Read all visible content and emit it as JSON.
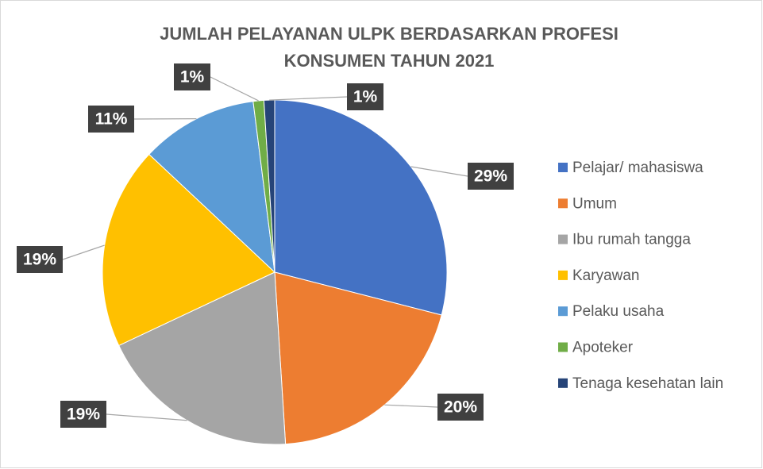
{
  "chart_data": {
    "type": "pie",
    "title": "JUMLAH PELAYANAN ULPK BERDASARKAN PROFESI KONSUMEN TAHUN 2021",
    "categories": [
      "Pelajar/ mahasiswa",
      "Umum",
      "Ibu rumah tangga",
      "Karyawan",
      "Pelaku usaha",
      "Apoteker",
      "Tenaga kesehatan lain"
    ],
    "values": [
      29,
      20,
      19,
      19,
      11,
      1,
      1
    ],
    "value_labels": [
      "29%",
      "20%",
      "19%",
      "19%",
      "11%",
      "1%",
      "1%"
    ],
    "colors": [
      "#4472c4",
      "#ed7d31",
      "#a5a5a5",
      "#ffc000",
      "#5b9bd5",
      "#70ad47",
      "#264478"
    ],
    "legend": "right"
  }
}
